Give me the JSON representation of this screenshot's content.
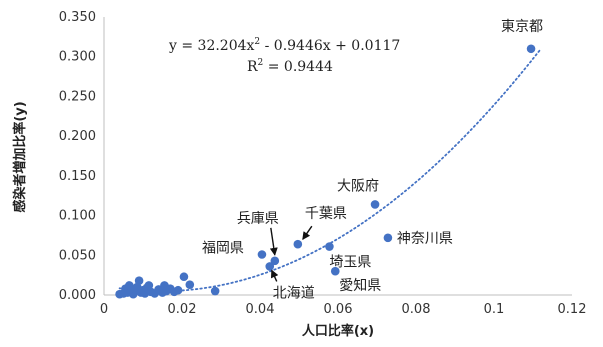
{
  "chart_data": {
    "type": "scatter",
    "xlabel": "人口比率(x)",
    "ylabel": "感染者増加比率(y)",
    "xlim": [
      0,
      0.12
    ],
    "ylim": [
      0,
      0.35
    ],
    "x_ticks": [
      "0",
      "0.02",
      "0.04",
      "0.06",
      "0.08",
      "0.1",
      "0.12"
    ],
    "y_ticks": [
      "0.000",
      "0.050",
      "0.100",
      "0.150",
      "0.200",
      "0.250",
      "0.300",
      "0.350"
    ],
    "grid": false,
    "marker_color": "#4472C4",
    "trendline": {
      "type": "polynomial",
      "coefficients": [
        32.204,
        -0.9446,
        0.0117
      ],
      "equation_main": "y = 32.204x",
      "equation_sup": "2",
      "equation_tail": " - 0.9446x + 0.0117",
      "r2_main": "R",
      "r2_sup": "2",
      "r2_tail": " = 0.9444",
      "style": "dotted",
      "color": "#4472C4"
    },
    "points": [
      {
        "x": 0.004,
        "y": 0.001
      },
      {
        "x": 0.005,
        "y": 0.002
      },
      {
        "x": 0.0055,
        "y": 0.008
      },
      {
        "x": 0.006,
        "y": 0.003
      },
      {
        "x": 0.0065,
        "y": 0.012
      },
      {
        "x": 0.007,
        "y": 0.004
      },
      {
        "x": 0.0075,
        "y": 0.001
      },
      {
        "x": 0.008,
        "y": 0.007
      },
      {
        "x": 0.0085,
        "y": 0.01
      },
      {
        "x": 0.009,
        "y": 0.018
      },
      {
        "x": 0.0095,
        "y": 0.003
      },
      {
        "x": 0.01,
        "y": 0.006
      },
      {
        "x": 0.0105,
        "y": 0.002
      },
      {
        "x": 0.011,
        "y": 0.009
      },
      {
        "x": 0.0115,
        "y": 0.012
      },
      {
        "x": 0.012,
        "y": 0.004
      },
      {
        "x": 0.013,
        "y": 0.002
      },
      {
        "x": 0.014,
        "y": 0.007
      },
      {
        "x": 0.015,
        "y": 0.003
      },
      {
        "x": 0.0155,
        "y": 0.012
      },
      {
        "x": 0.016,
        "y": 0.005
      },
      {
        "x": 0.017,
        "y": 0.008
      },
      {
        "x": 0.018,
        "y": 0.004
      },
      {
        "x": 0.019,
        "y": 0.006
      },
      {
        "x": 0.0205,
        "y": 0.023
      },
      {
        "x": 0.022,
        "y": 0.013
      },
      {
        "x": 0.0285,
        "y": 0.005
      },
      {
        "x": 0.0405,
        "y": 0.051,
        "label": "福岡県"
      },
      {
        "x": 0.0425,
        "y": 0.036,
        "label": "北海道"
      },
      {
        "x": 0.0438,
        "y": 0.043,
        "label": "兵庫県"
      },
      {
        "x": 0.0497,
        "y": 0.064,
        "label": "千葉県"
      },
      {
        "x": 0.0578,
        "y": 0.061,
        "label": "埼玉県"
      },
      {
        "x": 0.0593,
        "y": 0.03,
        "label": "愛知県"
      },
      {
        "x": 0.0695,
        "y": 0.114,
        "label": "大阪府"
      },
      {
        "x": 0.0728,
        "y": 0.072,
        "label": "神奈川県"
      },
      {
        "x": 0.1095,
        "y": 0.31,
        "label": "東京都"
      }
    ]
  }
}
